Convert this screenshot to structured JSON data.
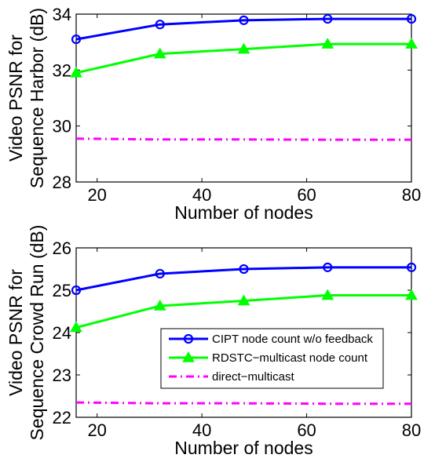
{
  "chart_data": [
    {
      "type": "line",
      "title": "",
      "xlabel": "Number of nodes",
      "ylabel_lines": [
        "Video PSNR for",
        "Sequence Harbor (dB)"
      ],
      "xlim": [
        16,
        80
      ],
      "ylim": [
        28,
        34
      ],
      "xticks": [
        20,
        40,
        60,
        80
      ],
      "yticks": [
        28,
        30,
        32,
        34
      ],
      "xtick_labels": [
        "20",
        "40",
        "60",
        "80"
      ],
      "ytick_labels": [
        "28",
        "30",
        "32",
        "34"
      ],
      "grid": false,
      "x": [
        16,
        32,
        48,
        64,
        80
      ],
      "series": [
        {
          "key": "cipt",
          "values": [
            33.1,
            33.63,
            33.78,
            33.83,
            33.83
          ],
          "color": "#0000ff",
          "marker": "circle",
          "dash": "solid"
        },
        {
          "key": "rdstc",
          "values": [
            31.9,
            32.58,
            32.75,
            32.93,
            32.93
          ],
          "color": "#00ff00",
          "marker": "triangle",
          "dash": "solid"
        },
        {
          "key": "direct",
          "values": [
            29.55,
            29.52,
            29.52,
            29.51,
            29.51
          ],
          "color": "#ff00ff",
          "marker": "none",
          "dash": "dashdot"
        }
      ]
    },
    {
      "type": "line",
      "title": "",
      "xlabel": "Number of nodes",
      "ylabel_lines": [
        "Video PSNR for",
        "Sequence Crowd Run (dB)"
      ],
      "xlim": [
        16,
        80
      ],
      "ylim": [
        22,
        26
      ],
      "xticks": [
        20,
        40,
        60,
        80
      ],
      "yticks": [
        22,
        23,
        24,
        25,
        26
      ],
      "xtick_labels": [
        "20",
        "40",
        "60",
        "80"
      ],
      "ytick_labels": [
        "22",
        "23",
        "24",
        "25",
        "26"
      ],
      "grid": false,
      "x": [
        16,
        32,
        48,
        64,
        80
      ],
      "legend": {
        "placement": "lower-right",
        "entries": [
          {
            "key": "cipt",
            "label": "CIPT node count w/o feedback"
          },
          {
            "key": "rdstc",
            "label": "RDSTC−multicast node count"
          },
          {
            "key": "direct",
            "label": "direct−multicast"
          }
        ]
      },
      "series": [
        {
          "key": "cipt",
          "name": "CIPT node count w/o feedback",
          "values": [
            25.0,
            25.39,
            25.5,
            25.54,
            25.54
          ],
          "color": "#0000ff",
          "marker": "circle",
          "dash": "solid"
        },
        {
          "key": "rdstc",
          "name": "RDSTC−multicast node count",
          "values": [
            24.12,
            24.63,
            24.75,
            24.88,
            24.88
          ],
          "color": "#00ff00",
          "marker": "triangle",
          "dash": "solid"
        },
        {
          "key": "direct",
          "name": "direct−multicast",
          "values": [
            22.35,
            22.33,
            22.33,
            22.32,
            22.32
          ],
          "color": "#ff00ff",
          "marker": "none",
          "dash": "dashdot"
        }
      ]
    }
  ]
}
